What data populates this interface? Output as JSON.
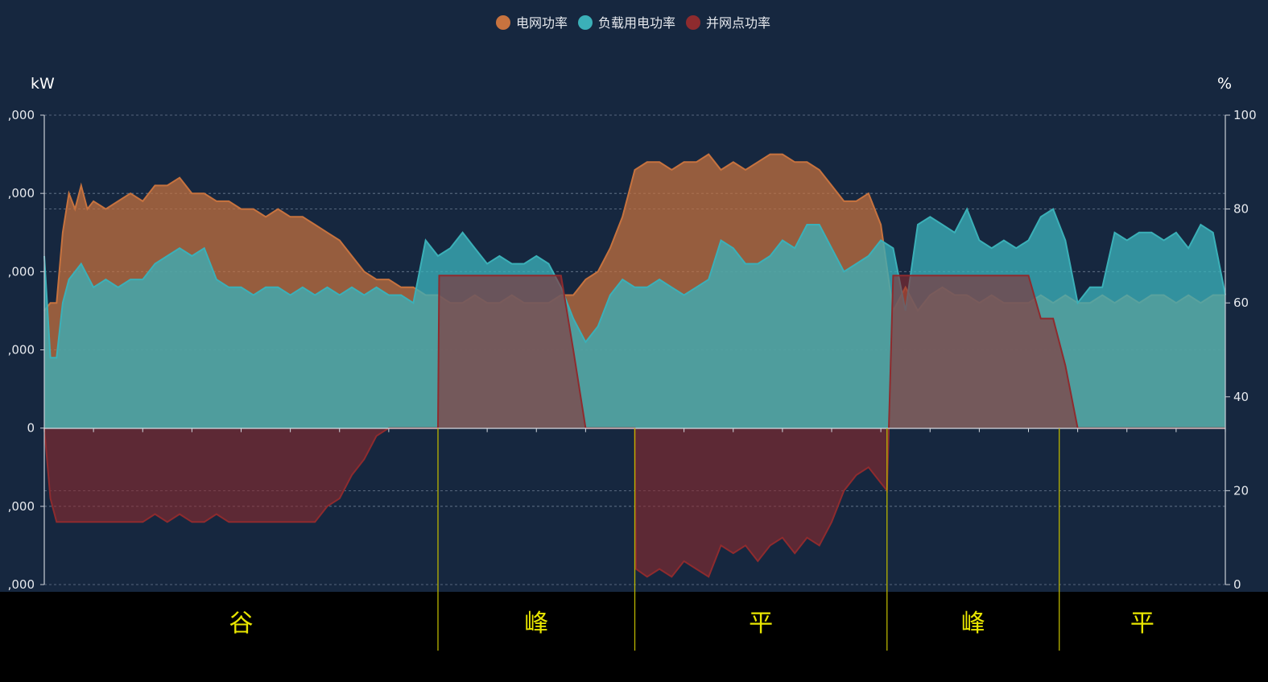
{
  "chart_data": {
    "type": "area",
    "legend": {
      "placement": "top-center",
      "items": [
        {
          "name": "电网功率",
          "color": "#c7733f"
        },
        {
          "name": "负载用电功率",
          "color": "#3bb0b8"
        },
        {
          "name": "并网点功率",
          "color": "#8e2b2e"
        }
      ]
    },
    "y_left": {
      "label": "kW",
      "ticks": [
        ",000",
        ",000",
        ",000",
        ",000",
        "0",
        ",000",
        ",000"
      ],
      "ylim": [
        -2,
        4
      ]
    },
    "y_right": {
      "label": "%",
      "ticks": [
        "100",
        "80",
        "60",
        "40",
        "20",
        "0"
      ],
      "ylim": [
        0,
        100
      ]
    },
    "grid": true,
    "x": {
      "range": [
        0,
        96
      ]
    },
    "series": [
      {
        "name": "电网功率",
        "color": "#c7733f",
        "points": [
          [
            0,
            1.5
          ],
          [
            0.5,
            1.6
          ],
          [
            1,
            1.6
          ],
          [
            1.5,
            2.5
          ],
          [
            2,
            3
          ],
          [
            2.5,
            2.8
          ],
          [
            3,
            3.1
          ],
          [
            3.5,
            2.8
          ],
          [
            4,
            2.9
          ],
          [
            5,
            2.8
          ],
          [
            6,
            2.9
          ],
          [
            7,
            3.0
          ],
          [
            8,
            2.9
          ],
          [
            9,
            3.1
          ],
          [
            10,
            3.1
          ],
          [
            11,
            3.2
          ],
          [
            12,
            3.0
          ],
          [
            13,
            3.0
          ],
          [
            14,
            2.9
          ],
          [
            15,
            2.9
          ],
          [
            16,
            2.8
          ],
          [
            17,
            2.8
          ],
          [
            18,
            2.7
          ],
          [
            19,
            2.8
          ],
          [
            20,
            2.7
          ],
          [
            21,
            2.7
          ],
          [
            22,
            2.6
          ],
          [
            23,
            2.5
          ],
          [
            24,
            2.4
          ],
          [
            25,
            2.2
          ],
          [
            26,
            2.0
          ],
          [
            27,
            1.9
          ],
          [
            28,
            1.9
          ],
          [
            29,
            1.8
          ],
          [
            30,
            1.8
          ],
          [
            31,
            1.7
          ],
          [
            32,
            1.7
          ],
          [
            33,
            1.6
          ],
          [
            34,
            1.6
          ],
          [
            35,
            1.7
          ],
          [
            36,
            1.6
          ],
          [
            37,
            1.6
          ],
          [
            38,
            1.7
          ],
          [
            39,
            1.6
          ],
          [
            40,
            1.6
          ],
          [
            41,
            1.6
          ],
          [
            42,
            1.7
          ],
          [
            43,
            1.7
          ],
          [
            44,
            1.9
          ],
          [
            45,
            2.0
          ],
          [
            46,
            2.3
          ],
          [
            47,
            2.7
          ],
          [
            48,
            3.3
          ],
          [
            49,
            3.4
          ],
          [
            50,
            3.4
          ],
          [
            51,
            3.3
          ],
          [
            52,
            3.4
          ],
          [
            53,
            3.4
          ],
          [
            54,
            3.5
          ],
          [
            55,
            3.3
          ],
          [
            56,
            3.4
          ],
          [
            57,
            3.3
          ],
          [
            58,
            3.4
          ],
          [
            59,
            3.5
          ],
          [
            60,
            3.5
          ],
          [
            61,
            3.4
          ],
          [
            62,
            3.4
          ],
          [
            63,
            3.3
          ],
          [
            64,
            3.1
          ],
          [
            65,
            2.9
          ],
          [
            66,
            2.9
          ],
          [
            67,
            3.0
          ],
          [
            68,
            2.6
          ],
          [
            69,
            1.5
          ],
          [
            70,
            1.8
          ],
          [
            71,
            1.5
          ],
          [
            72,
            1.7
          ],
          [
            73,
            1.8
          ],
          [
            74,
            1.7
          ],
          [
            75,
            1.7
          ],
          [
            76,
            1.6
          ],
          [
            77,
            1.7
          ],
          [
            78,
            1.6
          ],
          [
            79,
            1.6
          ],
          [
            80,
            1.6
          ],
          [
            81,
            1.7
          ],
          [
            82,
            1.6
          ],
          [
            83,
            1.7
          ],
          [
            84,
            1.6
          ],
          [
            85,
            1.6
          ],
          [
            86,
            1.7
          ],
          [
            87,
            1.6
          ],
          [
            88,
            1.7
          ],
          [
            89,
            1.6
          ],
          [
            90,
            1.7
          ],
          [
            91,
            1.7
          ],
          [
            92,
            1.6
          ],
          [
            93,
            1.7
          ],
          [
            94,
            1.6
          ],
          [
            95,
            1.7
          ],
          [
            96,
            1.7
          ]
        ]
      },
      {
        "name": "负载用电功率",
        "color": "#3bb0b8",
        "points": [
          [
            0,
            2.2
          ],
          [
            0.5,
            0.9
          ],
          [
            1,
            0.9
          ],
          [
            1.5,
            1.6
          ],
          [
            2,
            1.9
          ],
          [
            3,
            2.1
          ],
          [
            4,
            1.8
          ],
          [
            5,
            1.9
          ],
          [
            6,
            1.8
          ],
          [
            7,
            1.9
          ],
          [
            8,
            1.9
          ],
          [
            9,
            2.1
          ],
          [
            10,
            2.2
          ],
          [
            11,
            2.3
          ],
          [
            12,
            2.2
          ],
          [
            13,
            2.3
          ],
          [
            14,
            1.9
          ],
          [
            15,
            1.8
          ],
          [
            16,
            1.8
          ],
          [
            17,
            1.7
          ],
          [
            18,
            1.8
          ],
          [
            19,
            1.8
          ],
          [
            20,
            1.7
          ],
          [
            21,
            1.8
          ],
          [
            22,
            1.7
          ],
          [
            23,
            1.8
          ],
          [
            24,
            1.7
          ],
          [
            25,
            1.8
          ],
          [
            26,
            1.7
          ],
          [
            27,
            1.8
          ],
          [
            28,
            1.7
          ],
          [
            29,
            1.7
          ],
          [
            30,
            1.6
          ],
          [
            31,
            2.4
          ],
          [
            32,
            2.2
          ],
          [
            33,
            2.3
          ],
          [
            34,
            2.5
          ],
          [
            35,
            2.3
          ],
          [
            36,
            2.1
          ],
          [
            37,
            2.2
          ],
          [
            38,
            2.1
          ],
          [
            39,
            2.1
          ],
          [
            40,
            2.2
          ],
          [
            41,
            2.1
          ],
          [
            42,
            1.8
          ],
          [
            43,
            1.4
          ],
          [
            44,
            1.1
          ],
          [
            45,
            1.3
          ],
          [
            46,
            1.7
          ],
          [
            47,
            1.9
          ],
          [
            48,
            1.8
          ],
          [
            49,
            1.8
          ],
          [
            50,
            1.9
          ],
          [
            51,
            1.8
          ],
          [
            52,
            1.7
          ],
          [
            53,
            1.8
          ],
          [
            54,
            1.9
          ],
          [
            55,
            2.4
          ],
          [
            56,
            2.3
          ],
          [
            57,
            2.1
          ],
          [
            58,
            2.1
          ],
          [
            59,
            2.2
          ],
          [
            60,
            2.4
          ],
          [
            61,
            2.3
          ],
          [
            62,
            2.6
          ],
          [
            63,
            2.6
          ],
          [
            64,
            2.3
          ],
          [
            65,
            2.0
          ],
          [
            66,
            2.1
          ],
          [
            67,
            2.2
          ],
          [
            68,
            2.4
          ],
          [
            69,
            2.3
          ],
          [
            70,
            1.5
          ],
          [
            71,
            2.6
          ],
          [
            72,
            2.7
          ],
          [
            73,
            2.6
          ],
          [
            74,
            2.5
          ],
          [
            75,
            2.8
          ],
          [
            76,
            2.4
          ],
          [
            77,
            2.3
          ],
          [
            78,
            2.4
          ],
          [
            79,
            2.3
          ],
          [
            80,
            2.4
          ],
          [
            81,
            2.7
          ],
          [
            82,
            2.8
          ],
          [
            83,
            2.4
          ],
          [
            84,
            1.6
          ],
          [
            85,
            1.8
          ],
          [
            86,
            1.8
          ],
          [
            87,
            2.5
          ],
          [
            88,
            2.4
          ],
          [
            89,
            2.5
          ],
          [
            90,
            2.5
          ],
          [
            91,
            2.4
          ],
          [
            92,
            2.5
          ],
          [
            93,
            2.3
          ],
          [
            94,
            2.6
          ],
          [
            95,
            2.5
          ],
          [
            96,
            1.7
          ]
        ]
      },
      {
        "name": "并网点功率",
        "color": "#8e2b2e",
        "points": [
          [
            0,
            0
          ],
          [
            0.5,
            -0.9
          ],
          [
            1,
            -1.2
          ],
          [
            2,
            -1.2
          ],
          [
            4,
            -1.2
          ],
          [
            6,
            -1.2
          ],
          [
            8,
            -1.2
          ],
          [
            9,
            -1.1
          ],
          [
            10,
            -1.2
          ],
          [
            11,
            -1.1
          ],
          [
            12,
            -1.2
          ],
          [
            13,
            -1.2
          ],
          [
            14,
            -1.1
          ],
          [
            15,
            -1.2
          ],
          [
            18,
            -1.2
          ],
          [
            20,
            -1.2
          ],
          [
            22,
            -1.2
          ],
          [
            23,
            -1.0
          ],
          [
            24,
            -0.9
          ],
          [
            25,
            -0.6
          ],
          [
            26,
            -0.4
          ],
          [
            27,
            -0.1
          ],
          [
            28,
            0
          ],
          [
            32,
            0
          ],
          [
            32.1,
            1.95
          ],
          [
            34,
            1.95
          ],
          [
            36,
            1.95
          ],
          [
            38,
            1.95
          ],
          [
            40,
            1.95
          ],
          [
            42,
            1.95
          ],
          [
            43,
            1.0
          ],
          [
            44,
            0
          ],
          [
            48,
            0
          ],
          [
            48.1,
            -1.8
          ],
          [
            49,
            -1.9
          ],
          [
            50,
            -1.8
          ],
          [
            51,
            -1.9
          ],
          [
            52,
            -1.7
          ],
          [
            53,
            -1.8
          ],
          [
            54,
            -1.9
          ],
          [
            55,
            -1.5
          ],
          [
            56,
            -1.6
          ],
          [
            57,
            -1.5
          ],
          [
            58,
            -1.7
          ],
          [
            59,
            -1.5
          ],
          [
            60,
            -1.4
          ],
          [
            61,
            -1.6
          ],
          [
            62,
            -1.4
          ],
          [
            63,
            -1.5
          ],
          [
            64,
            -1.2
          ],
          [
            65,
            -0.8
          ],
          [
            66,
            -0.6
          ],
          [
            67,
            -0.5
          ],
          [
            68,
            -0.7
          ],
          [
            68.5,
            -0.8
          ],
          [
            69,
            1.95
          ],
          [
            72,
            1.95
          ],
          [
            75,
            1.95
          ],
          [
            78,
            1.95
          ],
          [
            80,
            1.95
          ],
          [
            81,
            1.4
          ],
          [
            82,
            1.4
          ],
          [
            83,
            0.8
          ],
          [
            84,
            0
          ],
          [
            96,
            0
          ]
        ]
      }
    ],
    "tou_bands": [
      {
        "label": "谷",
        "start": 0,
        "end": 32
      },
      {
        "label": "峰",
        "start": 32,
        "end": 48
      },
      {
        "label": "平",
        "start": 48,
        "end": 68.5
      },
      {
        "label": "峰",
        "start": 68.5,
        "end": 82.5
      },
      {
        "label": "平",
        "start": 82.5,
        "end": 96
      }
    ]
  }
}
